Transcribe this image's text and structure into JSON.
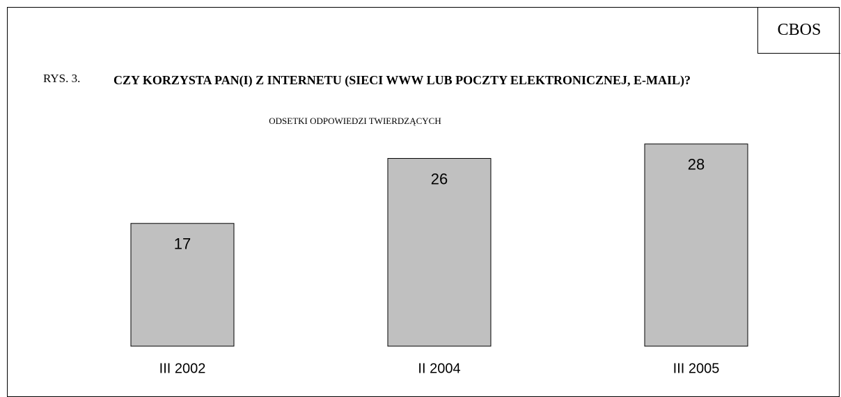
{
  "header": {
    "brand": "CBOS",
    "figure_label": "RYS. 3."
  },
  "chart_data": {
    "type": "bar",
    "title": "CZY KORZYSTA PAN(I) Z INTERNETU (SIECI WWW LUB POCZTY ELEKTRONICZNEJ, E-MAIL)?",
    "subtitle": "ODSETKI ODPOWIEDZI TWIERDZĄCYCH",
    "categories": [
      "III 2002",
      "II 2004",
      "III 2005"
    ],
    "values": [
      17,
      26,
      28
    ],
    "color": "#c0c0c0",
    "ylim": [
      0,
      30
    ]
  }
}
